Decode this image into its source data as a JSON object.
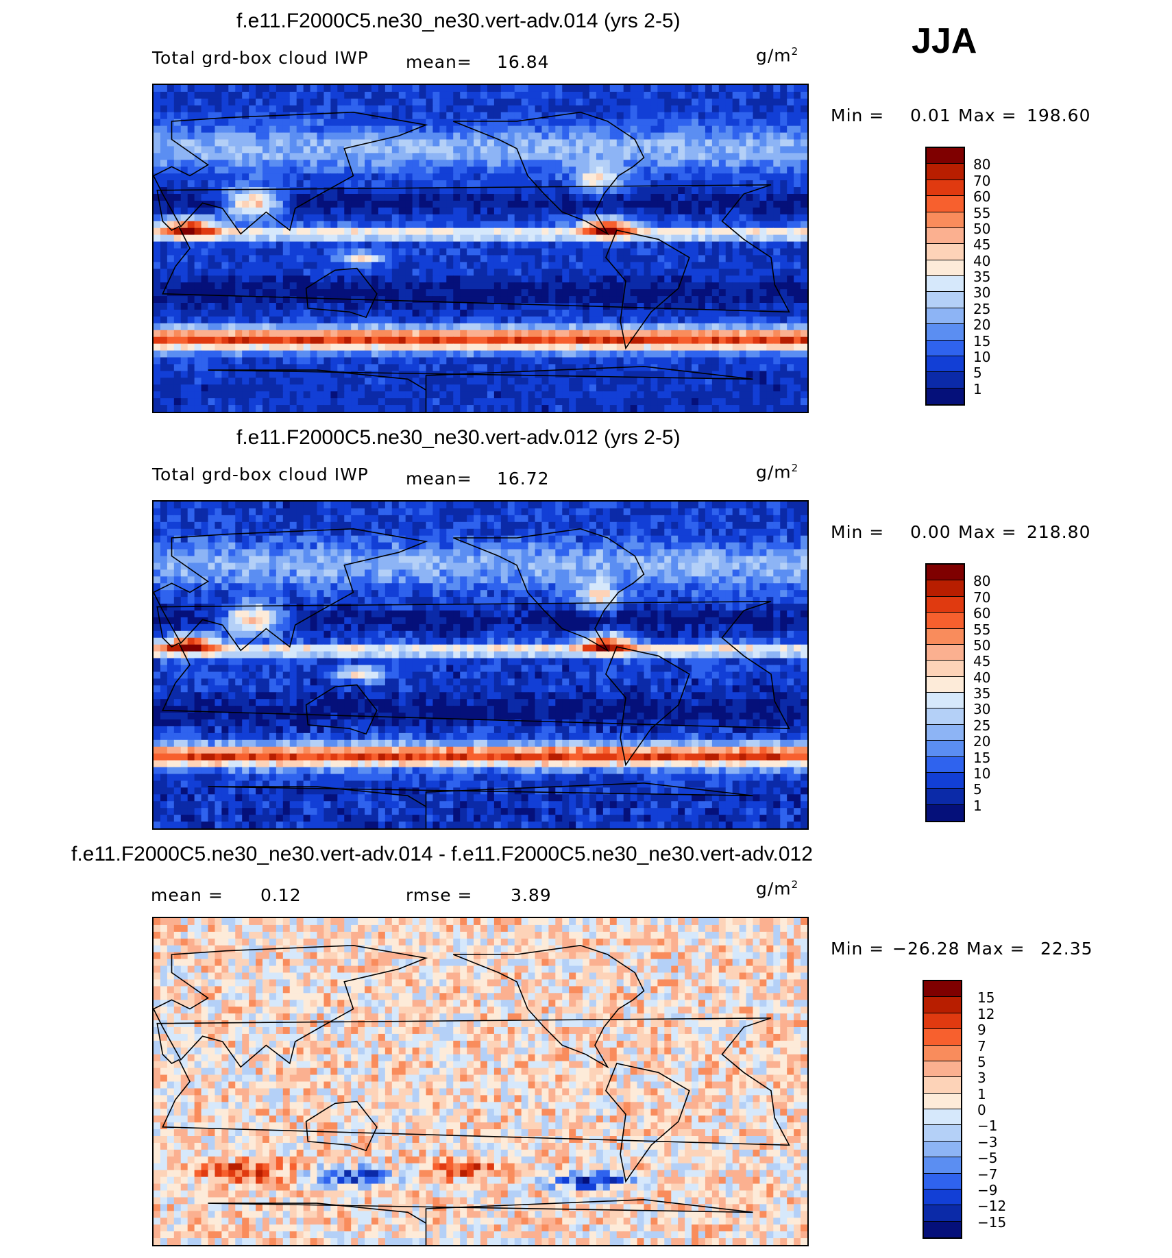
{
  "season": "JJA",
  "panels": [
    {
      "title": "f.e11.F2000C5.ne30_ne30.vert-adv.014 (yrs 2-5)",
      "variable": "Total grd-box cloud IWP",
      "stat_label": "mean=",
      "stat_value": "16.84",
      "units": "g/m",
      "units_sup": "2",
      "min_label": "Min =",
      "min_value": "0.01",
      "max_label": "Max =",
      "max_value": "198.60"
    },
    {
      "title": "f.e11.F2000C5.ne30_ne30.vert-adv.012 (yrs 2-5)",
      "variable": "Total grd-box cloud IWP",
      "stat_label": "mean=",
      "stat_value": "16.72",
      "units": "g/m",
      "units_sup": "2",
      "min_label": "Min =",
      "min_value": "0.00",
      "max_label": "Max =",
      "max_value": "218.80"
    },
    {
      "title": "f.e11.F2000C5.ne30_ne30.vert-adv.014 - f.e11.F2000C5.ne30_ne30.vert-adv.012",
      "mean_label": "mean =",
      "mean_value": "0.12",
      "rmse_label": "rmse =",
      "rmse_value": "3.89",
      "units": "g/m",
      "units_sup": "2",
      "min_label": "Min =",
      "min_value": "−26.28",
      "max_label": "Max =",
      "max_value": "22.35"
    }
  ],
  "chart_data": [
    {
      "type": "heatmap",
      "title": "f.e11.F2000C5.ne30_ne30.vert-adv.014 (yrs 2-5)",
      "field": "Total grd-box cloud IWP",
      "units": "g/m2",
      "mean": 16.84,
      "min": 0.01,
      "max": 198.6,
      "colorbar_levels": [
        "80",
        "70",
        "60",
        "55",
        "50",
        "45",
        "40",
        "35",
        "30",
        "25",
        "20",
        "15",
        "10",
        "5",
        "1"
      ],
      "colorbar_colors": [
        "#7f0000",
        "#b81e00",
        "#e03a10",
        "#f7602e",
        "#f98c5c",
        "#fbb090",
        "#fdd3b8",
        "#fdebd9",
        "#d6e8fb",
        "#b4d0f7",
        "#8db4f5",
        "#5b8ef2",
        "#2f63ee",
        "#123fd6",
        "#0b2aa8",
        "#05107a"
      ]
    },
    {
      "type": "heatmap",
      "title": "f.e11.F2000C5.ne30_ne30.vert-adv.012 (yrs 2-5)",
      "field": "Total grd-box cloud IWP",
      "units": "g/m2",
      "mean": 16.72,
      "min": 0.0,
      "max": 218.8,
      "colorbar_levels": [
        "80",
        "70",
        "60",
        "55",
        "50",
        "45",
        "40",
        "35",
        "30",
        "25",
        "20",
        "15",
        "10",
        "5",
        "1"
      ],
      "colorbar_colors": [
        "#7f0000",
        "#b81e00",
        "#e03a10",
        "#f7602e",
        "#f98c5c",
        "#fbb090",
        "#fdd3b8",
        "#fdebd9",
        "#d6e8fb",
        "#b4d0f7",
        "#8db4f5",
        "#5b8ef2",
        "#2f63ee",
        "#123fd6",
        "#0b2aa8",
        "#05107a"
      ]
    },
    {
      "type": "heatmap",
      "title": "f.e11.F2000C5.ne30_ne30.vert-adv.014 - f.e11.F2000C5.ne30_ne30.vert-adv.012",
      "field": "difference",
      "units": "g/m2",
      "mean": 0.12,
      "rmse": 3.89,
      "min": -26.28,
      "max": 22.35,
      "colorbar_levels": [
        "15",
        "12",
        "9",
        "7",
        "5",
        "3",
        "1",
        "0",
        "−1",
        "−3",
        "−5",
        "−7",
        "−9",
        "−12",
        "−15"
      ],
      "colorbar_colors": [
        "#7f0000",
        "#b81e00",
        "#e03a10",
        "#f7602e",
        "#f98c5c",
        "#fbb090",
        "#fdd3b8",
        "#fdebd9",
        "#d6e8fb",
        "#b4d0f7",
        "#8db4f5",
        "#5b8ef2",
        "#2f63ee",
        "#123fd6",
        "#0b2aa8",
        "#05107a"
      ]
    }
  ]
}
